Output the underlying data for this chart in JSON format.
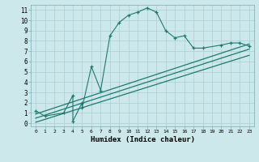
{
  "xlabel": "Humidex (Indice chaleur)",
  "bg_color": "#cce8eb",
  "grid_color": "#aacdd2",
  "line_color": "#1e7a6e",
  "xlim": [
    -0.5,
    23.5
  ],
  "ylim": [
    -0.3,
    11.5
  ],
  "xticks": [
    0,
    1,
    2,
    3,
    4,
    5,
    6,
    7,
    8,
    9,
    10,
    11,
    12,
    13,
    14,
    15,
    16,
    17,
    18,
    19,
    20,
    21,
    22,
    23
  ],
  "yticks": [
    0,
    1,
    2,
    3,
    4,
    5,
    6,
    7,
    8,
    9,
    10,
    11
  ],
  "series1_x": [
    0,
    1,
    3,
    4,
    4,
    5,
    5,
    6,
    7,
    8,
    9,
    10,
    11,
    12,
    13,
    14,
    15,
    16,
    17,
    18,
    20,
    21,
    22,
    23
  ],
  "series1_y": [
    1.2,
    0.7,
    1.0,
    2.7,
    0.2,
    2.0,
    1.5,
    5.5,
    3.2,
    8.5,
    9.8,
    10.5,
    10.8,
    11.2,
    10.8,
    9.0,
    8.3,
    8.5,
    7.3,
    7.3,
    7.6,
    7.8,
    7.8,
    7.5
  ],
  "series2_x": [
    0,
    23
  ],
  "series2_y": [
    0.9,
    7.7
  ],
  "series3_x": [
    0,
    23
  ],
  "series3_y": [
    0.5,
    7.2
  ],
  "series4_x": [
    0,
    23
  ],
  "series4_y": [
    0.1,
    6.6
  ]
}
